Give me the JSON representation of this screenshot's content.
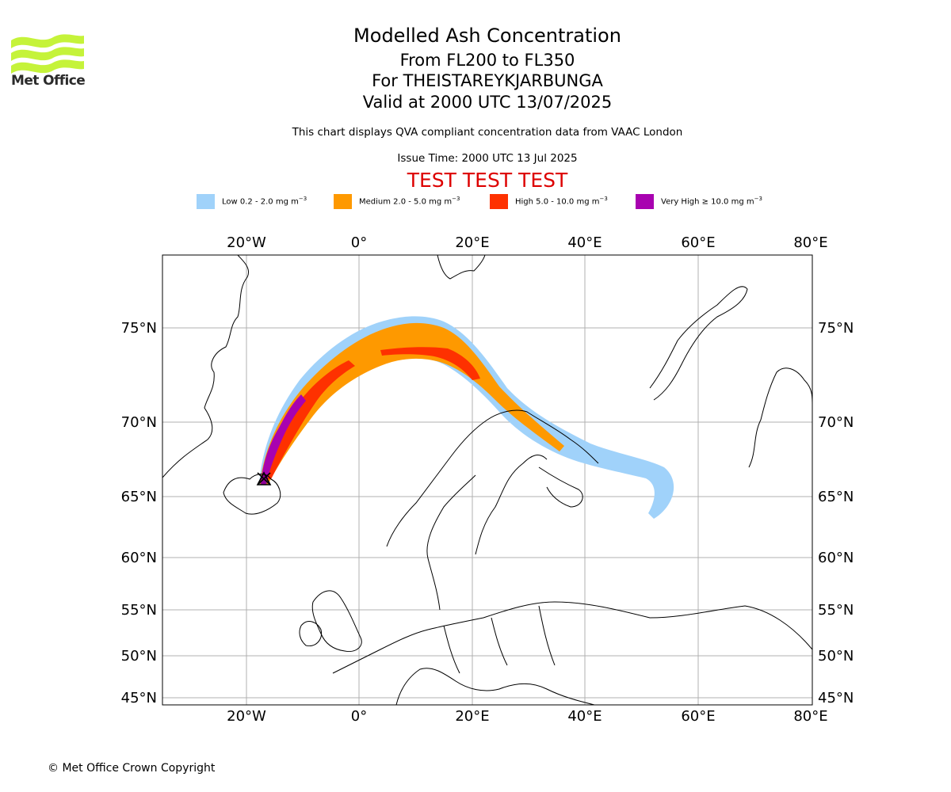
{
  "brand": {
    "name": "Met Office"
  },
  "header": {
    "title": "Modelled Ash Concentration",
    "subtitle_levels": "From FL200 to FL350",
    "subtitle_location": "For THEISTAREYKJARBUNGA",
    "subtitle_valid": "Valid at 2000 UTC 13/07/2025",
    "qva_note": "This chart displays QVA compliant concentration data from VAAC London",
    "issue_time": "Issue Time: 2000 UTC 13 Jul 2025",
    "test_banner": "TEST TEST TEST"
  },
  "legend": [
    {
      "label": "Low 0.2 - 2.0 mg m",
      "exp": "−3",
      "color": "#a0d2fa"
    },
    {
      "label": "Medium 2.0 - 5.0 mg m",
      "exp": "−3",
      "color": "#fe9900"
    },
    {
      "label": "High 5.0 - 10.0 mg m",
      "exp": "−3",
      "color": "#fe3100"
    },
    {
      "label": "Very High  ≥  10.0 mg m",
      "exp": "−3",
      "color": "#a802b0"
    }
  ],
  "map": {
    "lon_range": [
      -40,
      80
    ],
    "lat_range": [
      44.5,
      79.5
    ],
    "lon_ticks": [
      "20°W",
      "0°",
      "20°E",
      "40°E",
      "60°E",
      "80°E"
    ],
    "lat_ticks": [
      "75°N",
      "70°N",
      "65°N",
      "60°N",
      "55°N",
      "50°N",
      "45°N"
    ],
    "grid": true,
    "volcano_marker": "volcano-triangle-icon"
  },
  "footer": {
    "copyright": "© Met Office Crown Copyright"
  }
}
